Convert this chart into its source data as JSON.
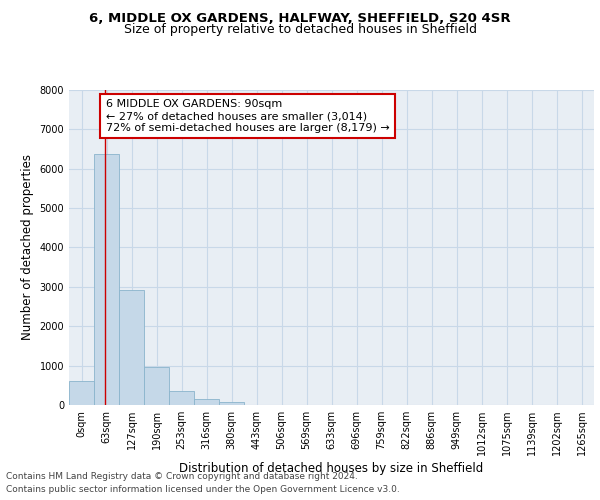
{
  "title_line1": "6, MIDDLE OX GARDENS, HALFWAY, SHEFFIELD, S20 4SR",
  "title_line2": "Size of property relative to detached houses in Sheffield",
  "xlabel": "Distribution of detached houses by size in Sheffield",
  "ylabel": "Number of detached properties",
  "bar_categories": [
    "0sqm",
    "63sqm",
    "127sqm",
    "190sqm",
    "253sqm",
    "316sqm",
    "380sqm",
    "443sqm",
    "506sqm",
    "569sqm",
    "633sqm",
    "696sqm",
    "759sqm",
    "822sqm",
    "886sqm",
    "949sqm",
    "1012sqm",
    "1075sqm",
    "1139sqm",
    "1202sqm",
    "1265sqm"
  ],
  "bar_values": [
    600,
    6380,
    2920,
    970,
    360,
    150,
    65,
    0,
    0,
    0,
    0,
    0,
    0,
    0,
    0,
    0,
    0,
    0,
    0,
    0,
    0
  ],
  "bar_color": "#c5d8e8",
  "bar_edgecolor": "#8ab4cc",
  "annotation_text": "6 MIDDLE OX GARDENS: 90sqm\n← 27% of detached houses are smaller (3,014)\n72% of semi-detached houses are larger (8,179) →",
  "annotation_bbox_edgecolor": "#cc0000",
  "annotation_bbox_facecolor": "white",
  "ylim": [
    0,
    8000
  ],
  "yticks": [
    0,
    1000,
    2000,
    3000,
    4000,
    5000,
    6000,
    7000,
    8000
  ],
  "grid_color": "#c8d8e8",
  "background_color": "#e8eef4",
  "footer_line1": "Contains HM Land Registry data © Crown copyright and database right 2024.",
  "footer_line2": "Contains public sector information licensed under the Open Government Licence v3.0.",
  "title_fontsize": 9.5,
  "subtitle_fontsize": 9,
  "axis_label_fontsize": 8.5,
  "tick_fontsize": 7,
  "annotation_fontsize": 8,
  "footer_fontsize": 6.5
}
